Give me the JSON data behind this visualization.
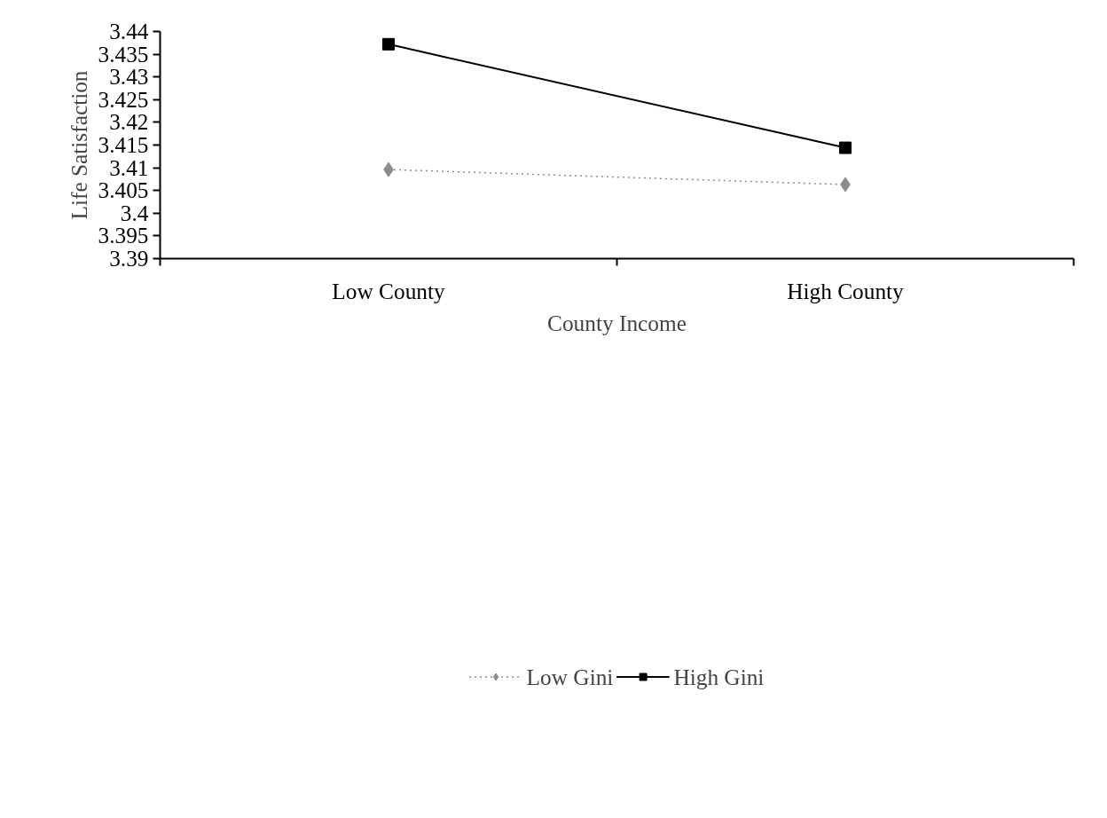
{
  "chart_data": {
    "type": "line",
    "xlabel": "County Income",
    "ylabel": "Life Satisfaction",
    "categories": [
      "Low County",
      "High County"
    ],
    "series": [
      {
        "name": "Low Gini",
        "color": "#8c8c8c",
        "values": [
          3.4096,
          3.4063
        ],
        "marker": "diamond",
        "line_style": "dotted"
      },
      {
        "name": "High Gini",
        "color": "#000000",
        "values": [
          3.4372,
          3.4144
        ],
        "marker": "square",
        "line_style": "solid"
      }
    ],
    "ylim": [
      3.39,
      3.44
    ],
    "yticks": [
      3.39,
      3.395,
      3.4,
      3.405,
      3.41,
      3.415,
      3.42,
      3.425,
      3.43,
      3.435,
      3.44
    ],
    "grid": false,
    "legend": "bottom"
  }
}
